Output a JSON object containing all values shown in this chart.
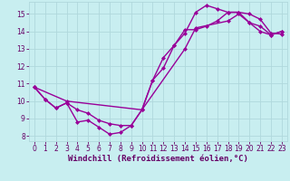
{
  "xlabel": "Windchill (Refroidissement éolien,°C)",
  "bg_color": "#c8eef0",
  "grid_color": "#b0d8dc",
  "line_color": "#990099",
  "xlim": [
    -0.5,
    23.5
  ],
  "ylim": [
    7.7,
    15.7
  ],
  "xticks": [
    0,
    1,
    2,
    3,
    4,
    5,
    6,
    7,
    8,
    9,
    10,
    11,
    12,
    13,
    14,
    15,
    16,
    17,
    18,
    19,
    20,
    21,
    22,
    23
  ],
  "yticks": [
    8,
    9,
    10,
    11,
    12,
    13,
    14,
    15
  ],
  "line1_x": [
    0,
    1,
    2,
    3,
    4,
    5,
    6,
    7,
    8,
    9,
    10,
    11,
    12,
    13,
    14,
    15,
    16,
    17,
    18,
    19,
    20,
    21,
    22,
    23
  ],
  "line1_y": [
    10.8,
    10.1,
    9.6,
    9.9,
    8.8,
    8.9,
    8.5,
    8.1,
    8.2,
    8.6,
    9.5,
    11.2,
    12.5,
    13.2,
    13.9,
    15.1,
    15.5,
    15.3,
    15.1,
    15.1,
    14.5,
    14.0,
    13.8,
    14.0
  ],
  "line2_x": [
    0,
    1,
    2,
    3,
    4,
    5,
    6,
    7,
    8,
    9,
    10,
    11,
    12,
    13,
    14,
    15,
    16,
    17,
    18,
    19,
    20,
    21,
    22,
    23
  ],
  "line2_y": [
    10.8,
    10.1,
    9.6,
    9.9,
    9.5,
    9.3,
    8.9,
    8.7,
    8.6,
    8.6,
    9.5,
    11.2,
    11.9,
    13.2,
    14.1,
    14.1,
    14.3,
    14.6,
    15.1,
    15.1,
    15.0,
    14.7,
    13.9,
    13.85
  ],
  "line3_x": [
    0,
    3,
    10,
    14,
    15,
    18,
    19,
    20,
    21,
    22,
    23
  ],
  "line3_y": [
    10.8,
    10.0,
    9.5,
    13.0,
    14.2,
    14.6,
    15.0,
    14.5,
    14.3,
    13.8,
    14.0
  ],
  "font_color": "#660066",
  "tick_fontsize": 5.5,
  "label_fontsize": 6.5,
  "linewidth": 1.0
}
